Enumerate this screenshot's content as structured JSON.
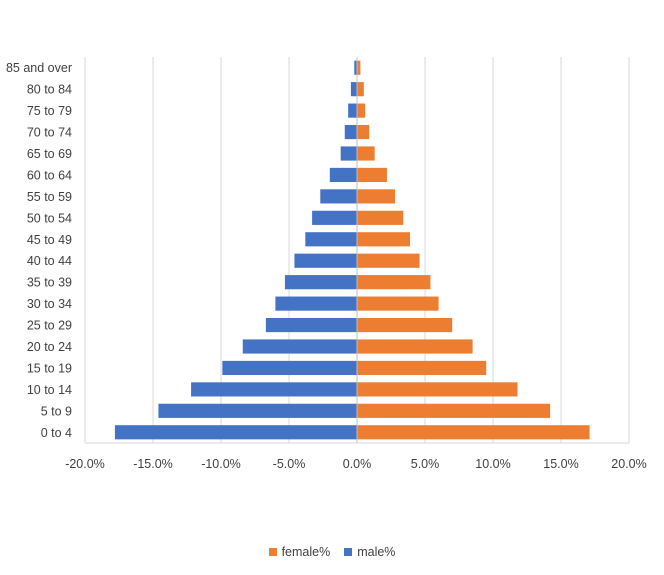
{
  "chart_data": {
    "type": "bar",
    "orientation": "horizontal",
    "categories": [
      "0 to 4",
      "5 to 9",
      "10 to 14",
      "15 to 19",
      "20 to 24",
      "25 to 29",
      "30 to 34",
      "35 to 39",
      "40 to 44",
      "45 to 49",
      "50 to 54",
      "55 to 59",
      "60 to 64",
      "65 to 69",
      "70 to 74",
      "75 to 79",
      "80 to 84",
      "85 and over"
    ],
    "series": [
      {
        "name": "female%",
        "color": "#ED7D31",
        "values": [
          17.1,
          14.2,
          11.8,
          9.5,
          8.5,
          7.0,
          6.0,
          5.4,
          4.6,
          3.9,
          3.4,
          2.8,
          2.2,
          1.3,
          0.9,
          0.6,
          0.5,
          0.25
        ]
      },
      {
        "name": "male%",
        "color": "#4472C4",
        "values": [
          -17.8,
          -14.6,
          -12.2,
          -9.9,
          -8.4,
          -6.7,
          -6.0,
          -5.3,
          -4.6,
          -3.8,
          -3.3,
          -2.7,
          -2.0,
          -1.2,
          -0.9,
          -0.65,
          -0.45,
          -0.2
        ]
      }
    ],
    "xlim": [
      -20,
      20
    ],
    "xticks": [
      "-20.0%",
      "-15.0%",
      "-10.0%",
      "-5.0%",
      "0.0%",
      "5.0%",
      "10.0%",
      "15.0%",
      "20.0%"
    ],
    "grid": true,
    "legend_position": "bottom",
    "title": "",
    "xlabel": "",
    "ylabel": ""
  }
}
